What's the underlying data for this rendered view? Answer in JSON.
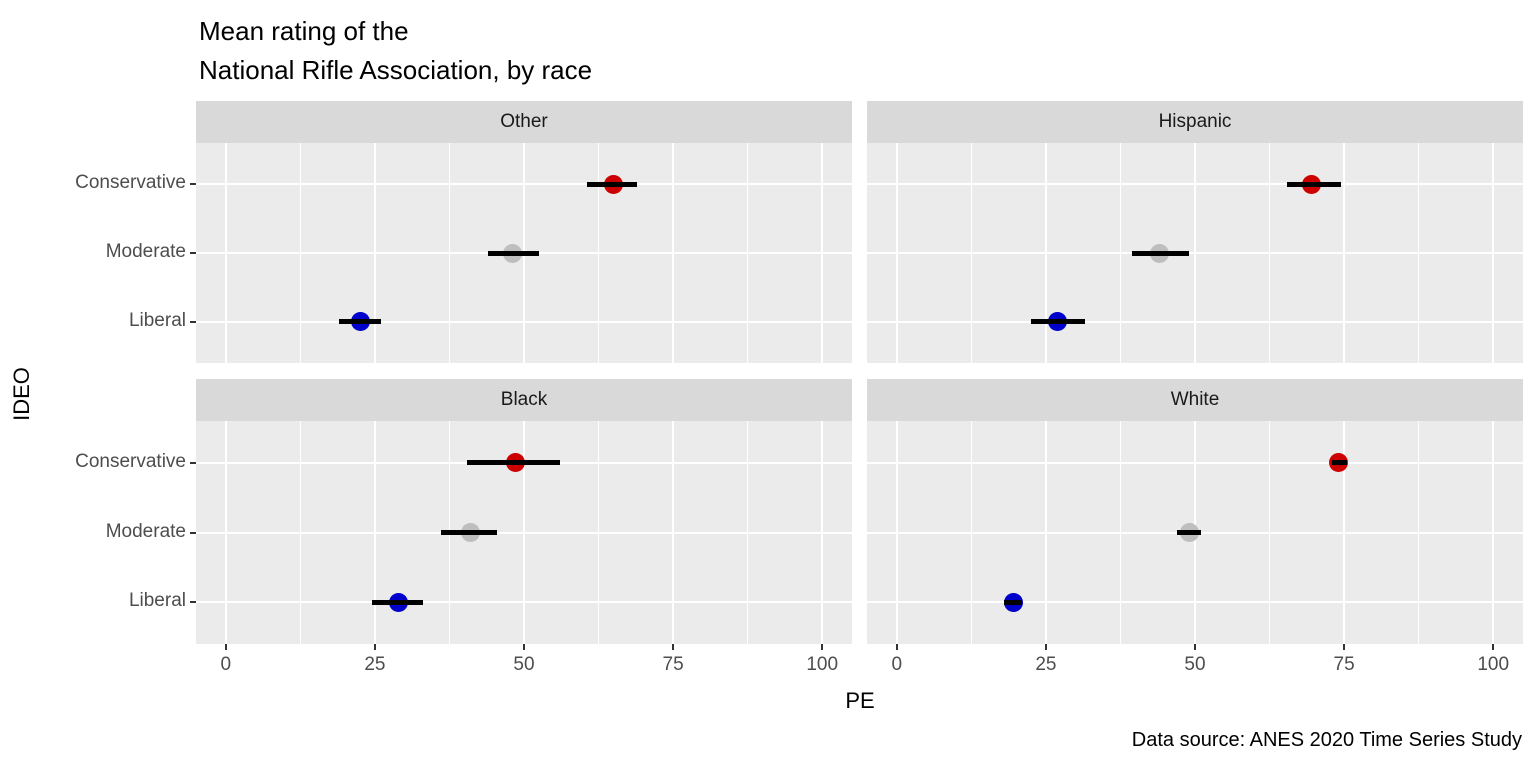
{
  "title": "Mean rating of the\nNational Rifle Association, by race",
  "caption": "Data source: ANES 2020 Time Series Study",
  "chart_data": {
    "type": "scatter",
    "title": "Mean rating of the National Rifle Association, by race",
    "xlabel": "PE",
    "ylabel": "IDEO",
    "xlim": [
      -5,
      105
    ],
    "x_ticks": [
      0,
      25,
      50,
      75,
      100
    ],
    "grid": {
      "major": [
        0,
        25,
        50,
        75,
        100
      ],
      "minor": [
        12.5,
        37.5,
        62.5,
        87.5
      ]
    },
    "categories": [
      "Conservative",
      "Moderate",
      "Liberal"
    ],
    "colors": {
      "Conservative": "#CD0000",
      "Moderate": "#BEBEBE",
      "Liberal": "#0000CD"
    },
    "legend": "none",
    "facets": [
      {
        "name": "Other",
        "points": [
          {
            "ideo": "Conservative",
            "pe": 65.0,
            "ci": [
              60.5,
              69.0
            ]
          },
          {
            "ideo": "Moderate",
            "pe": 48.0,
            "ci": [
              44.0,
              52.5
            ]
          },
          {
            "ideo": "Liberal",
            "pe": 22.5,
            "ci": [
              19.0,
              26.0
            ]
          }
        ]
      },
      {
        "name": "Hispanic",
        "points": [
          {
            "ideo": "Conservative",
            "pe": 69.5,
            "ci": [
              65.5,
              74.5
            ]
          },
          {
            "ideo": "Moderate",
            "pe": 44.0,
            "ci": [
              39.5,
              49.0
            ]
          },
          {
            "ideo": "Liberal",
            "pe": 27.0,
            "ci": [
              22.5,
              31.5
            ]
          }
        ]
      },
      {
        "name": "Black",
        "points": [
          {
            "ideo": "Conservative",
            "pe": 48.5,
            "ci": [
              40.5,
              56.0
            ]
          },
          {
            "ideo": "Moderate",
            "pe": 41.0,
            "ci": [
              36.0,
              45.5
            ]
          },
          {
            "ideo": "Liberal",
            "pe": 29.0,
            "ci": [
              24.5,
              33.0
            ]
          }
        ]
      },
      {
        "name": "White",
        "points": [
          {
            "ideo": "Conservative",
            "pe": 74.0,
            "ci": [
              73.0,
              75.5
            ]
          },
          {
            "ideo": "Moderate",
            "pe": 49.0,
            "ci": [
              47.0,
              51.0
            ]
          },
          {
            "ideo": "Liberal",
            "pe": 19.5,
            "ci": [
              18.0,
              21.0
            ]
          }
        ]
      }
    ],
    "theme": {
      "panel_bg": "#EBEBEB",
      "strip_bg": "#D9D9D9",
      "grid_color": "#FFFFFF",
      "tick_label_color": "#4D4D4D",
      "errorbar_color": "#000000"
    }
  }
}
